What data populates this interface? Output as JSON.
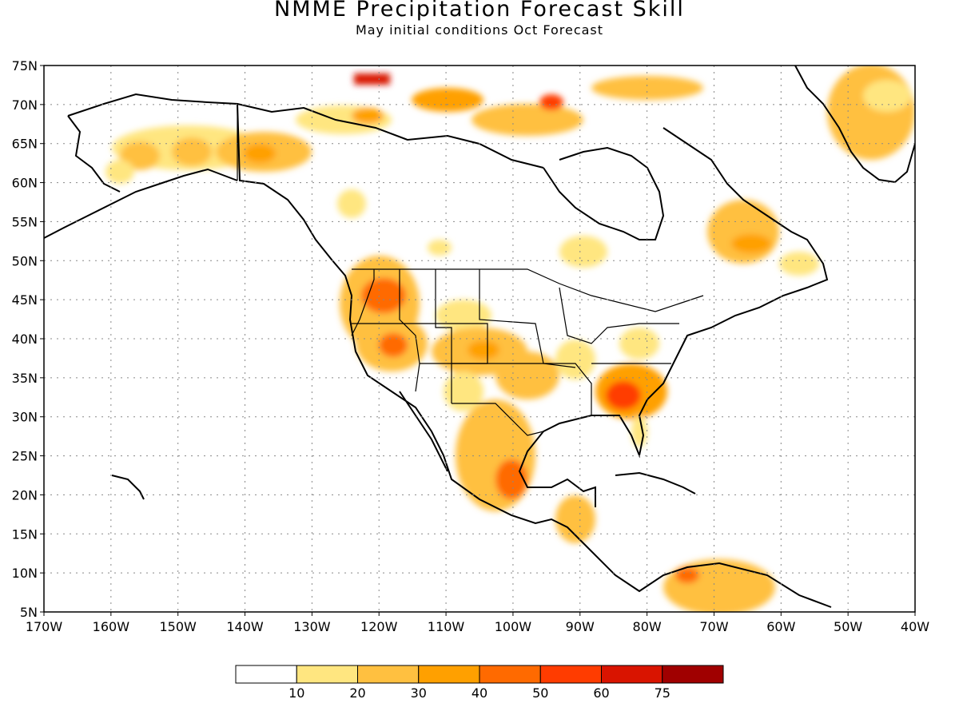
{
  "title": "NMME Precipitation Forecast Skill",
  "subtitle": "May initial conditions  Oct Forecast",
  "lat_labels": [
    "75N",
    "70N",
    "65N",
    "60N",
    "55N",
    "50N",
    "45N",
    "40N",
    "35N",
    "30N",
    "25N",
    "20N",
    "15N",
    "10N",
    "5N"
  ],
  "lon_labels": [
    "170W",
    "160W",
    "150W",
    "140W",
    "130W",
    "120W",
    "110W",
    "100W",
    "90W",
    "80W",
    "70W",
    "60W",
    "50W",
    "40W"
  ],
  "legend": {
    "labels": [
      "10",
      "20",
      "30",
      "40",
      "50",
      "60",
      "75"
    ],
    "colors": [
      "#ffffff",
      "#ffe680",
      "#ffc040",
      "#ffa000",
      "#ff6a00",
      "#ff3c00",
      "#d91400",
      "#a00000"
    ]
  }
}
